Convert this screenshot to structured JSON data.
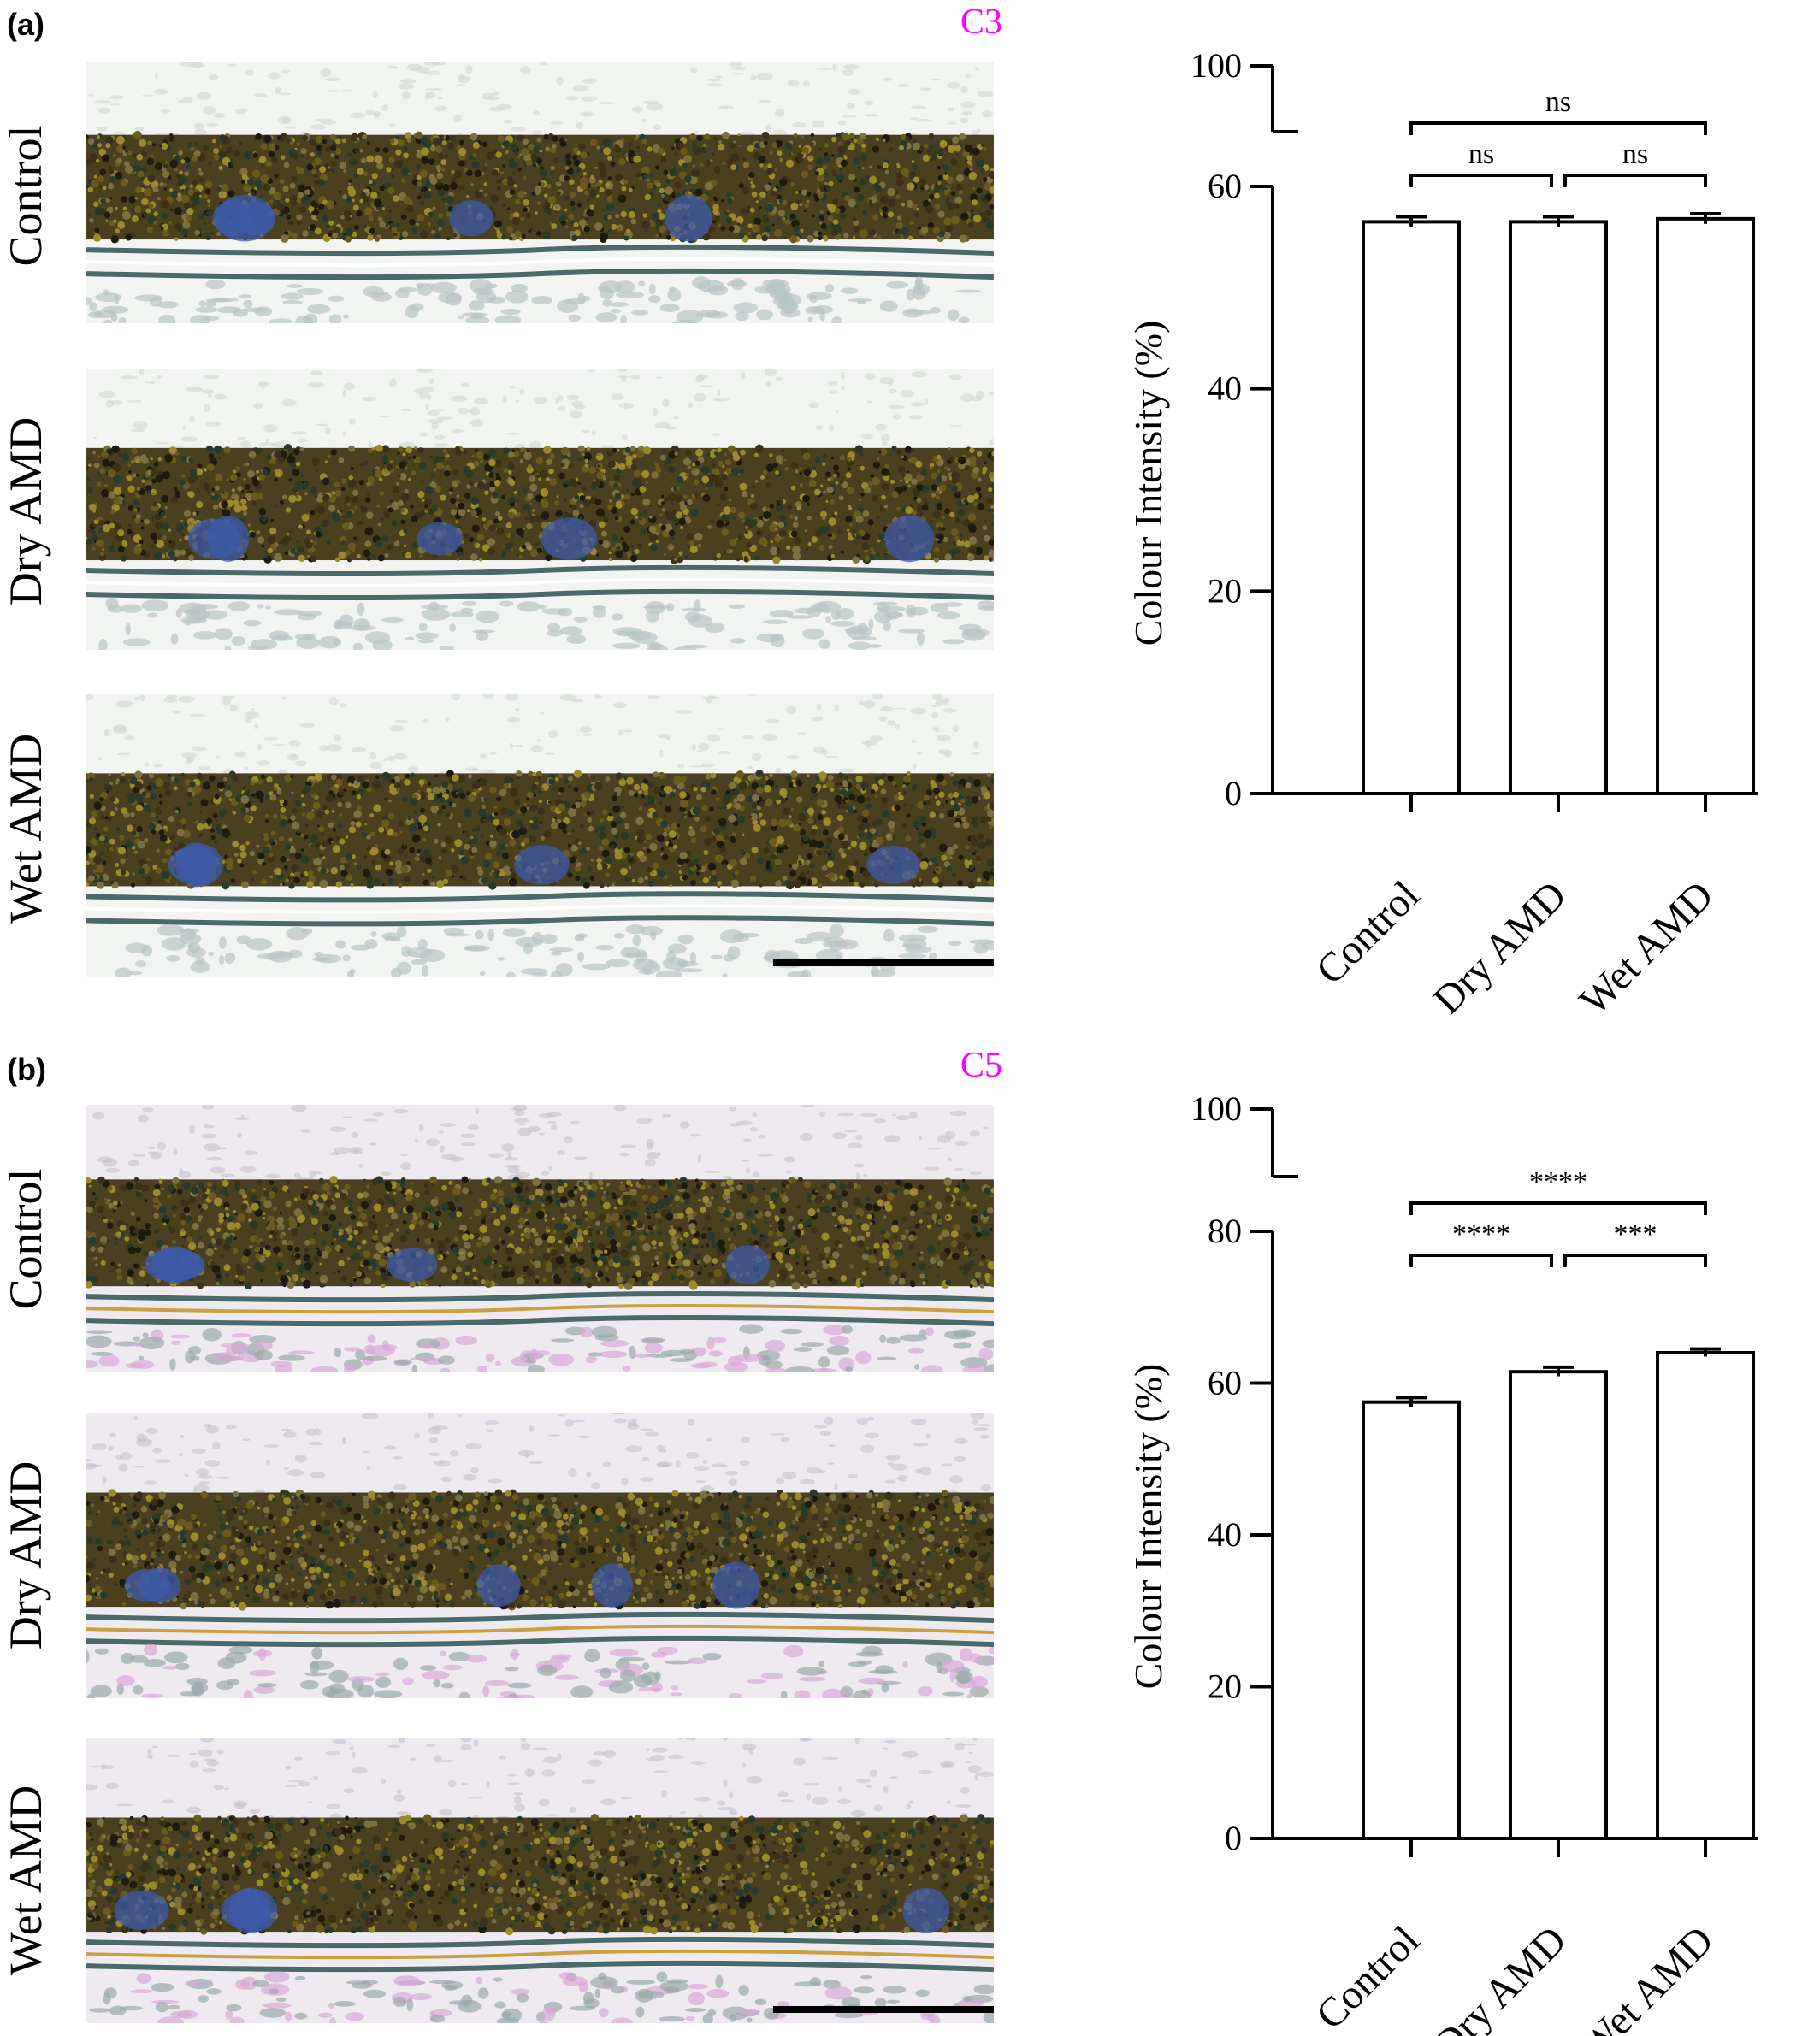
{
  "colors": {
    "stain_label": "#ff00ff",
    "bar_fill": "#ffffff",
    "axis": "#000000"
  },
  "panels": [
    {
      "letter": "(a)",
      "stain": "C3",
      "rows": [
        "Control",
        "Dry AMD",
        "Wet AMD"
      ]
    },
    {
      "letter": "(b)",
      "stain": "C5",
      "rows": [
        "Control",
        "Dry AMD",
        "Wet AMD"
      ]
    }
  ],
  "chart_data": [
    {
      "type": "bar",
      "categories": [
        "Control",
        "Dry AMD",
        "Wet AMD"
      ],
      "values": [
        56.5,
        56.5,
        56.8
      ],
      "errors": [
        0.5,
        0.5,
        0.5
      ],
      "ylabel": "Colour Intensity (%)",
      "ylim": [
        0,
        100
      ],
      "axis_break": [
        60,
        100
      ],
      "yticks": [
        0,
        20,
        40,
        60,
        100
      ],
      "significance": [
        {
          "from": 0,
          "to": 2,
          "label": "ns"
        },
        {
          "from": 0,
          "to": 1,
          "label": "ns"
        },
        {
          "from": 1,
          "to": 2,
          "label": "ns"
        }
      ]
    },
    {
      "type": "bar",
      "categories": [
        "Control",
        "Dry AMD",
        "Wet AMD"
      ],
      "values": [
        57.5,
        61.5,
        64.0
      ],
      "errors": [
        0.6,
        0.6,
        0.5
      ],
      "ylabel": "Colour Intensity (%)",
      "ylim": [
        0,
        100
      ],
      "axis_break": [
        80,
        100
      ],
      "yticks": [
        0,
        20,
        40,
        60,
        80,
        100
      ],
      "significance": [
        {
          "from": 0,
          "to": 2,
          "label": "****"
        },
        {
          "from": 0,
          "to": 1,
          "label": "****"
        },
        {
          "from": 1,
          "to": 2,
          "label": "***"
        }
      ]
    }
  ]
}
